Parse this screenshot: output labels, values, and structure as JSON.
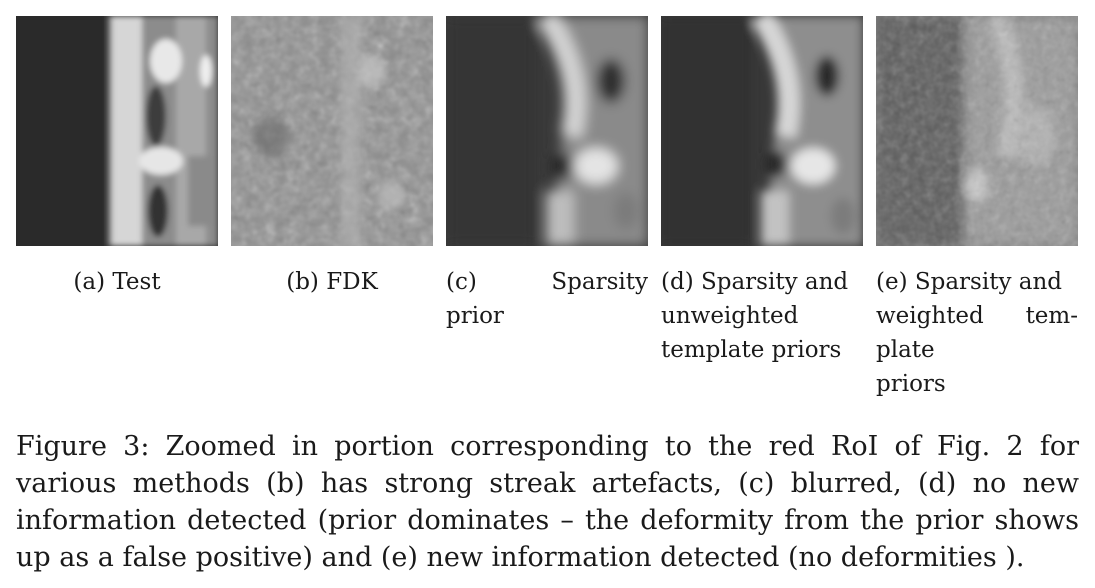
{
  "subfigures": [
    {
      "label": "(a) Test"
    },
    {
      "label": "(b) FDK"
    },
    {
      "label_parts": [
        "(c)",
        "Sparsity",
        "prior"
      ]
    },
    {
      "label_lines": [
        "(d) Sparsity and",
        "unweighted",
        "template priors"
      ]
    },
    {
      "label_lines": [
        "(e) Sparsity and",
        "weighted tem-",
        "plate",
        "priors"
      ],
      "line2_parts": [
        "weighted",
        "tem-"
      ]
    }
  ],
  "caption": "Figure 3: Zoomed in portion corresponding to the red RoI of Fig. 2 for various methods (b) has strong streak artefacts, (c) blurred, (d) no new information detected (prior dominates – the deformity from the prior shows up as a false positive) and (e) new information detected (no deformities )."
}
